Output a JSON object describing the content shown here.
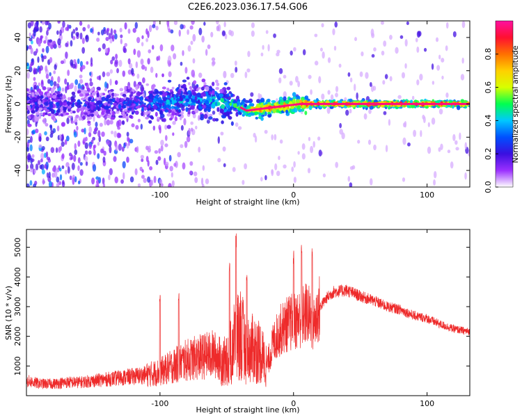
{
  "title": "C2E6.2023.036.17.54.G06",
  "colors": {
    "signal": "#e83030",
    "snr_line": "#ee2a2a",
    "background": "#ffffff",
    "colorbar": [
      "#ffffff",
      "#9b30ff",
      "#3a0fe0",
      "#0050ff",
      "#00c8ff",
      "#00ff50",
      "#d8ff00",
      "#ffd000",
      "#ff7000",
      "#ff1030",
      "#ff10a0"
    ]
  },
  "chart_data": [
    {
      "type": "heatmap",
      "xlabel": "Height of straight line (km)",
      "ylabel": "Frequency (Hz)",
      "xlim": [
        -200,
        132
      ],
      "ylim": [
        -50,
        50
      ],
      "xticks": [
        -100,
        0,
        100
      ],
      "yticks": [
        -40,
        -20,
        0,
        20,
        40
      ],
      "grid": false,
      "colorbar": {
        "label": "Normalized spectral amplitude",
        "range": [
          0.0,
          1.0
        ],
        "ticks": [
          0.0,
          0.2,
          0.4,
          0.6,
          0.8
        ]
      },
      "ridge": {
        "x": [
          -200,
          -160,
          -120,
          -90,
          -70,
          -55,
          -45,
          -35,
          -25,
          -15,
          -5,
          5,
          15,
          40,
          80,
          132
        ],
        "frequency": [
          0,
          0,
          0,
          1,
          2,
          1,
          0,
          -4,
          -3,
          -2,
          -1,
          0,
          0,
          0,
          0,
          0
        ],
        "amplitude": [
          0.3,
          0.3,
          0.35,
          0.45,
          0.45,
          0.5,
          0.55,
          0.7,
          0.85,
          0.9,
          0.9,
          0.95,
          0.95,
          0.95,
          0.95,
          0.95
        ]
      }
    },
    {
      "type": "line",
      "xlabel": "Height of straight line (km)",
      "ylabel": "SNR (10 * v/v)",
      "xlim": [
        -200,
        132
      ],
      "ylim": [
        0,
        5600
      ],
      "xticks": [
        -100,
        0,
        100
      ],
      "yticks": [
        1000,
        2000,
        3000,
        4000,
        5000
      ],
      "grid": false,
      "series": [
        {
          "x": [
            -200,
            -190,
            -180,
            -170,
            -160,
            -150,
            -140,
            -130,
            -120,
            -110,
            -100,
            -90,
            -80,
            -70,
            -60,
            -50,
            -45,
            -40,
            -35,
            -30,
            -25,
            -20,
            -15,
            -10,
            -5,
            0,
            5,
            10,
            15,
            20,
            25,
            30,
            40,
            50,
            60,
            70,
            80,
            90,
            100,
            110,
            120,
            132
          ],
          "y": [
            500,
            400,
            400,
            450,
            450,
            500,
            550,
            600,
            650,
            700,
            800,
            1000,
            1200,
            1300,
            1400,
            1100,
            1800,
            2200,
            1500,
            1600,
            1500,
            1000,
            1800,
            2200,
            2400,
            2500,
            2600,
            2800,
            2400,
            3000,
            3300,
            3500,
            3550,
            3350,
            3200,
            3000,
            2900,
            2700,
            2600,
            2400,
            2250,
            2150
          ],
          "peaks": [
            {
              "x": -100,
              "y": 3400
            },
            {
              "x": -86,
              "y": 3500
            },
            {
              "x": -48,
              "y": 4500
            },
            {
              "x": -43,
              "y": 5500
            },
            {
              "x": -35,
              "y": 4300
            },
            {
              "x": 0,
              "y": 4900
            },
            {
              "x": 6,
              "y": 5100
            },
            {
              "x": 14,
              "y": 5050
            }
          ]
        }
      ]
    }
  ]
}
